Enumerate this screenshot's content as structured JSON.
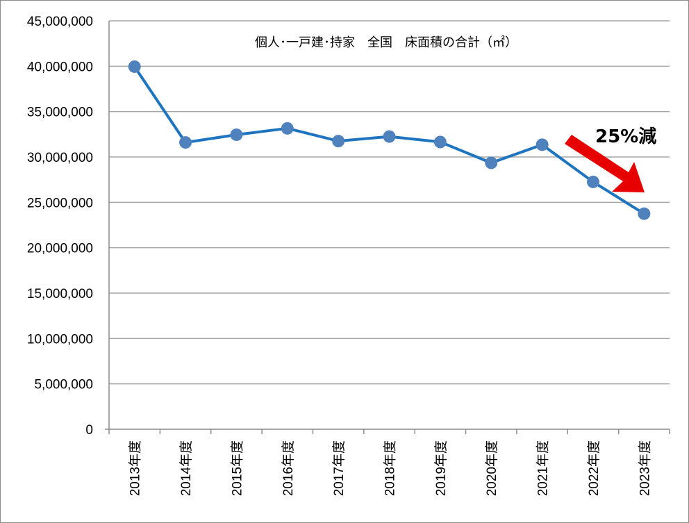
{
  "chart_data": {
    "type": "line",
    "title": "個人･一戸建･持家　全国　床面積の合計（㎡）",
    "xlabel": "",
    "ylabel": "",
    "categories": [
      "2013年度",
      "2014年度",
      "2015年度",
      "2016年度",
      "2017年度",
      "2018年度",
      "2019年度",
      "2020年度",
      "2021年度",
      "2022年度",
      "2023年度"
    ],
    "series": [
      {
        "values": [
          39950000,
          31600000,
          32450000,
          33150000,
          31750000,
          32250000,
          31650000,
          29350000,
          31350000,
          27250000,
          23750000
        ]
      }
    ],
    "ylim": [
      0,
      45000000
    ],
    "yticks": [
      "0",
      "5,000,000",
      "10,000,000",
      "15,000,000",
      "20,000,000",
      "25,000,000",
      "30,000,000",
      "35,000,000",
      "40,000,000",
      "45,000,000"
    ],
    "grid": true,
    "legend": "none",
    "annotation": "25%減",
    "colors": {
      "line": "#1f74c0",
      "marker": "#4f81bd",
      "arrow": "#e60000",
      "grid": "#a6a6a6"
    }
  }
}
